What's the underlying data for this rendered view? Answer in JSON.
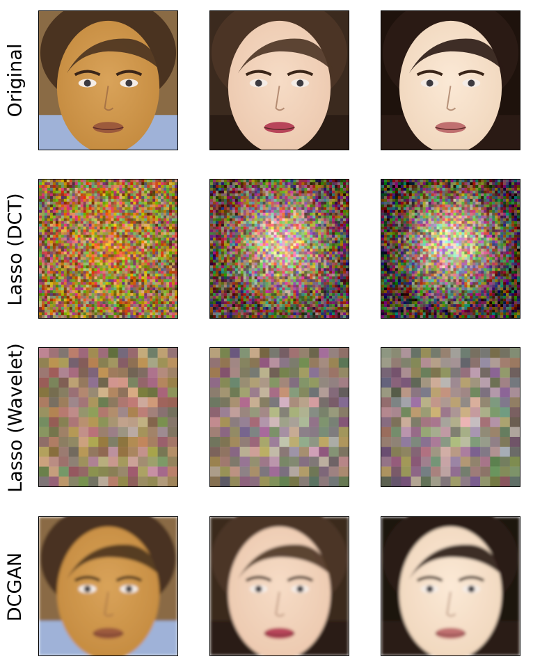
{
  "rows": [
    {
      "label": "Original",
      "kind": "face",
      "sharpness": "sharp"
    },
    {
      "label": "Lasso (DCT)",
      "kind": "noise",
      "sharpness": "noisy"
    },
    {
      "label": "Lasso (Wavelet)",
      "kind": "blocks",
      "sharpness": "pixelated"
    },
    {
      "label": "DCGAN",
      "kind": "face",
      "sharpness": "soft"
    }
  ],
  "columns": [
    {
      "skin": "#c48a3e",
      "skin_light": "#d9a35a",
      "hair": "#4a3320",
      "background": "#8a6b45",
      "lips": "#9c5a3c",
      "shirt": "#9fb2d8"
    },
    {
      "skin": "#ecc8ae",
      "skin_light": "#f6dcc6",
      "hair": "#4b3425",
      "background": "#3b2a1e",
      "lips": "#b8455a",
      "shirt": "#2a1c14"
    },
    {
      "skin": "#f0d6bc",
      "skin_light": "#fbe9d6",
      "hair": "#2a1a14",
      "background": "#1e120c",
      "lips": "#c07070",
      "shirt": "#2a1a14"
    }
  ]
}
